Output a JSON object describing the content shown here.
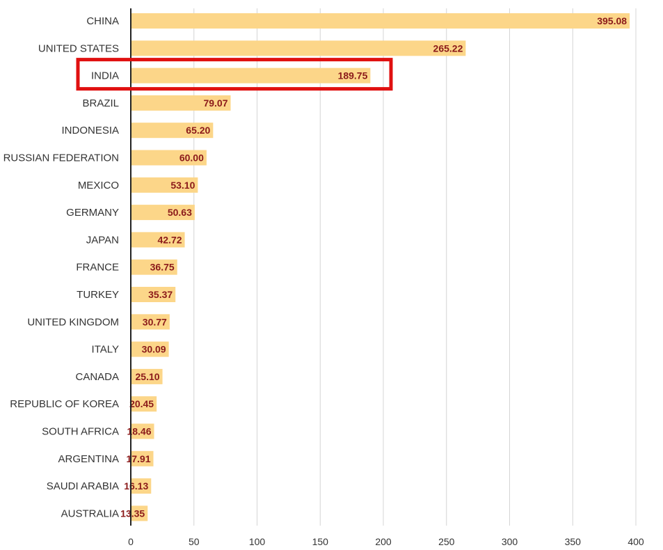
{
  "chart_data": {
    "type": "bar",
    "orientation": "horizontal",
    "categories": [
      "CHINA",
      "UNITED STATES",
      "INDIA",
      "BRAZIL",
      "INDONESIA",
      "RUSSIAN FEDERATION",
      "MEXICO",
      "GERMANY",
      "JAPAN",
      "FRANCE",
      "TURKEY",
      "UNITED KINGDOM",
      "ITALY",
      "CANADA",
      "REPUBLIC OF KOREA",
      "SOUTH AFRICA",
      "ARGENTINA",
      "SAUDI ARABIA",
      "AUSTRALIA"
    ],
    "values": [
      395.08,
      265.22,
      189.75,
      79.07,
      65.2,
      60.0,
      53.1,
      50.63,
      42.72,
      36.75,
      35.37,
      30.77,
      30.09,
      25.1,
      20.45,
      18.46,
      17.91,
      16.13,
      13.35
    ],
    "value_labels": [
      "395.08",
      "265.22",
      "189.75",
      "79.07",
      "65.20",
      "60.00",
      "53.10",
      "50.63",
      "42.72",
      "36.75",
      "35.37",
      "30.77",
      "30.09",
      "25.10",
      "20.45",
      "18.46",
      "17.91",
      "16.13",
      "13.35"
    ],
    "title": "",
    "xlabel": "",
    "ylabel": "",
    "xlim": [
      0,
      400
    ],
    "x_ticks": [
      0,
      50,
      100,
      150,
      200,
      250,
      300,
      350,
      400
    ],
    "grid": "vertical",
    "legend": "none",
    "highlighted_category": "INDIA",
    "colors": {
      "bar": "#fcd689",
      "value_text": "#8b1a1a",
      "category_text": "#333333",
      "grid": "#d4d4d4",
      "axis": "#222222",
      "highlight_box": "#e01010"
    }
  }
}
